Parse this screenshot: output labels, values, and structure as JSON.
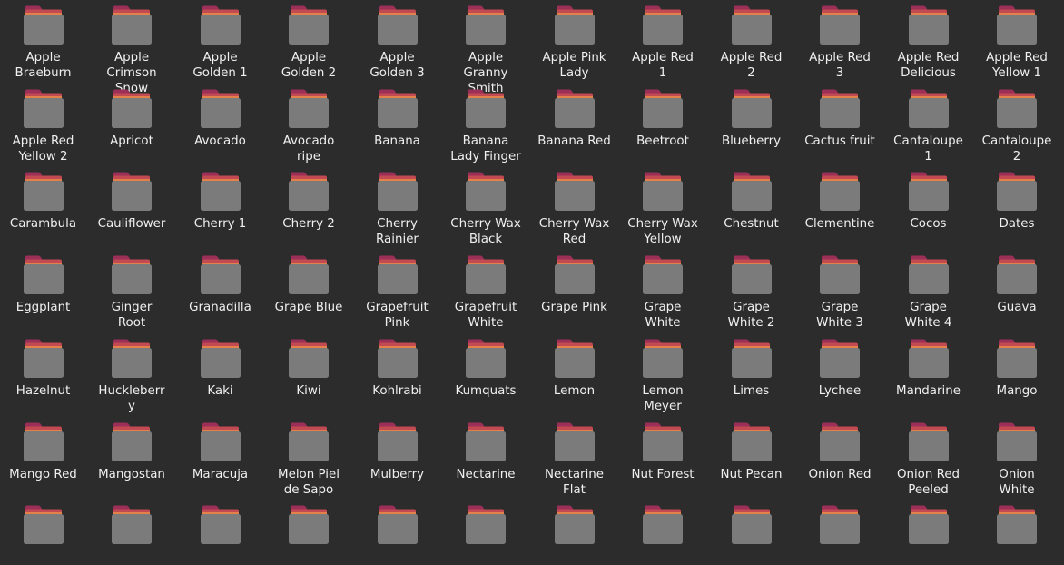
{
  "folder_icon": {
    "name": "folder-icon",
    "colors": {
      "tab": "#9c2f58",
      "back": "#c24a52",
      "edge": "#e4814a",
      "body": "#7b7b7b"
    }
  },
  "rows": [
    [
      {
        "lines": [
          "Apple",
          "Braeburn"
        ]
      },
      {
        "lines": [
          "Apple",
          "Crimson",
          "Snow"
        ]
      },
      {
        "lines": [
          "Apple",
          "Golden 1"
        ]
      },
      {
        "lines": [
          "Apple",
          "Golden 2"
        ]
      },
      {
        "lines": [
          "Apple",
          "Golden 3"
        ]
      },
      {
        "lines": [
          "Apple",
          "Granny",
          "Smith"
        ]
      },
      {
        "lines": [
          "Apple Pink",
          "Lady"
        ]
      },
      {
        "lines": [
          "Apple Red",
          "1"
        ]
      },
      {
        "lines": [
          "Apple Red",
          "2"
        ]
      },
      {
        "lines": [
          "Apple Red",
          "3"
        ]
      },
      {
        "lines": [
          "Apple Red",
          "Delicious"
        ]
      },
      {
        "lines": [
          "Apple Red",
          "Yellow 1"
        ]
      }
    ],
    [
      {
        "lines": [
          "Apple Red",
          "Yellow 2"
        ]
      },
      {
        "lines": [
          "Apricot"
        ]
      },
      {
        "lines": [
          "Avocado"
        ]
      },
      {
        "lines": [
          "Avocado",
          "ripe"
        ]
      },
      {
        "lines": [
          "Banana"
        ]
      },
      {
        "lines": [
          "Banana",
          "Lady Finger"
        ]
      },
      {
        "lines": [
          "Banana Red"
        ]
      },
      {
        "lines": [
          "Beetroot"
        ]
      },
      {
        "lines": [
          "Blueberry"
        ]
      },
      {
        "lines": [
          "Cactus fruit"
        ]
      },
      {
        "lines": [
          "Cantaloupe",
          "1"
        ]
      },
      {
        "lines": [
          "Cantaloupe",
          "2"
        ]
      }
    ],
    [
      {
        "lines": [
          "Carambula"
        ]
      },
      {
        "lines": [
          "Cauliflower"
        ]
      },
      {
        "lines": [
          "Cherry 1"
        ]
      },
      {
        "lines": [
          "Cherry 2"
        ]
      },
      {
        "lines": [
          "Cherry",
          "Rainier"
        ]
      },
      {
        "lines": [
          "Cherry Wax",
          "Black"
        ]
      },
      {
        "lines": [
          "Cherry Wax",
          "Red"
        ]
      },
      {
        "lines": [
          "Cherry Wax",
          "Yellow"
        ]
      },
      {
        "lines": [
          "Chestnut"
        ]
      },
      {
        "lines": [
          "Clementine"
        ]
      },
      {
        "lines": [
          "Cocos"
        ]
      },
      {
        "lines": [
          "Dates"
        ]
      }
    ],
    [
      {
        "lines": [
          "Eggplant"
        ]
      },
      {
        "lines": [
          "Ginger",
          "Root"
        ]
      },
      {
        "lines": [
          "Granadilla"
        ]
      },
      {
        "lines": [
          "Grape Blue"
        ]
      },
      {
        "lines": [
          "Grapefruit",
          "Pink"
        ]
      },
      {
        "lines": [
          "Grapefruit",
          "White"
        ]
      },
      {
        "lines": [
          "Grape Pink"
        ]
      },
      {
        "lines": [
          "Grape",
          "White"
        ]
      },
      {
        "lines": [
          "Grape",
          "White 2"
        ]
      },
      {
        "lines": [
          "Grape",
          "White 3"
        ]
      },
      {
        "lines": [
          "Grape",
          "White 4"
        ]
      },
      {
        "lines": [
          "Guava"
        ]
      }
    ],
    [
      {
        "lines": [
          "Hazelnut"
        ]
      },
      {
        "lines": [
          "Huckleberr",
          "y"
        ]
      },
      {
        "lines": [
          "Kaki"
        ]
      },
      {
        "lines": [
          "Kiwi"
        ]
      },
      {
        "lines": [
          "Kohlrabi"
        ]
      },
      {
        "lines": [
          "Kumquats"
        ]
      },
      {
        "lines": [
          "Lemon"
        ]
      },
      {
        "lines": [
          "Lemon",
          "Meyer"
        ]
      },
      {
        "lines": [
          "Limes"
        ]
      },
      {
        "lines": [
          "Lychee"
        ]
      },
      {
        "lines": [
          "Mandarine"
        ]
      },
      {
        "lines": [
          "Mango"
        ]
      }
    ],
    [
      {
        "lines": [
          "Mango Red"
        ]
      },
      {
        "lines": [
          "Mangostan"
        ]
      },
      {
        "lines": [
          "Maracuja"
        ]
      },
      {
        "lines": [
          "Melon Piel",
          "de Sapo"
        ]
      },
      {
        "lines": [
          "Mulberry"
        ]
      },
      {
        "lines": [
          "Nectarine"
        ]
      },
      {
        "lines": [
          "Nectarine",
          "Flat"
        ]
      },
      {
        "lines": [
          "Nut Forest"
        ]
      },
      {
        "lines": [
          "Nut Pecan"
        ]
      },
      {
        "lines": [
          "Onion Red"
        ]
      },
      {
        "lines": [
          "Onion Red",
          "Peeled"
        ]
      },
      {
        "lines": [
          "Onion",
          "White"
        ]
      }
    ],
    [
      {
        "lines": []
      },
      {
        "lines": []
      },
      {
        "lines": []
      },
      {
        "lines": []
      },
      {
        "lines": []
      },
      {
        "lines": []
      },
      {
        "lines": []
      },
      {
        "lines": []
      },
      {
        "lines": []
      },
      {
        "lines": []
      },
      {
        "lines": []
      },
      {
        "lines": []
      }
    ]
  ]
}
